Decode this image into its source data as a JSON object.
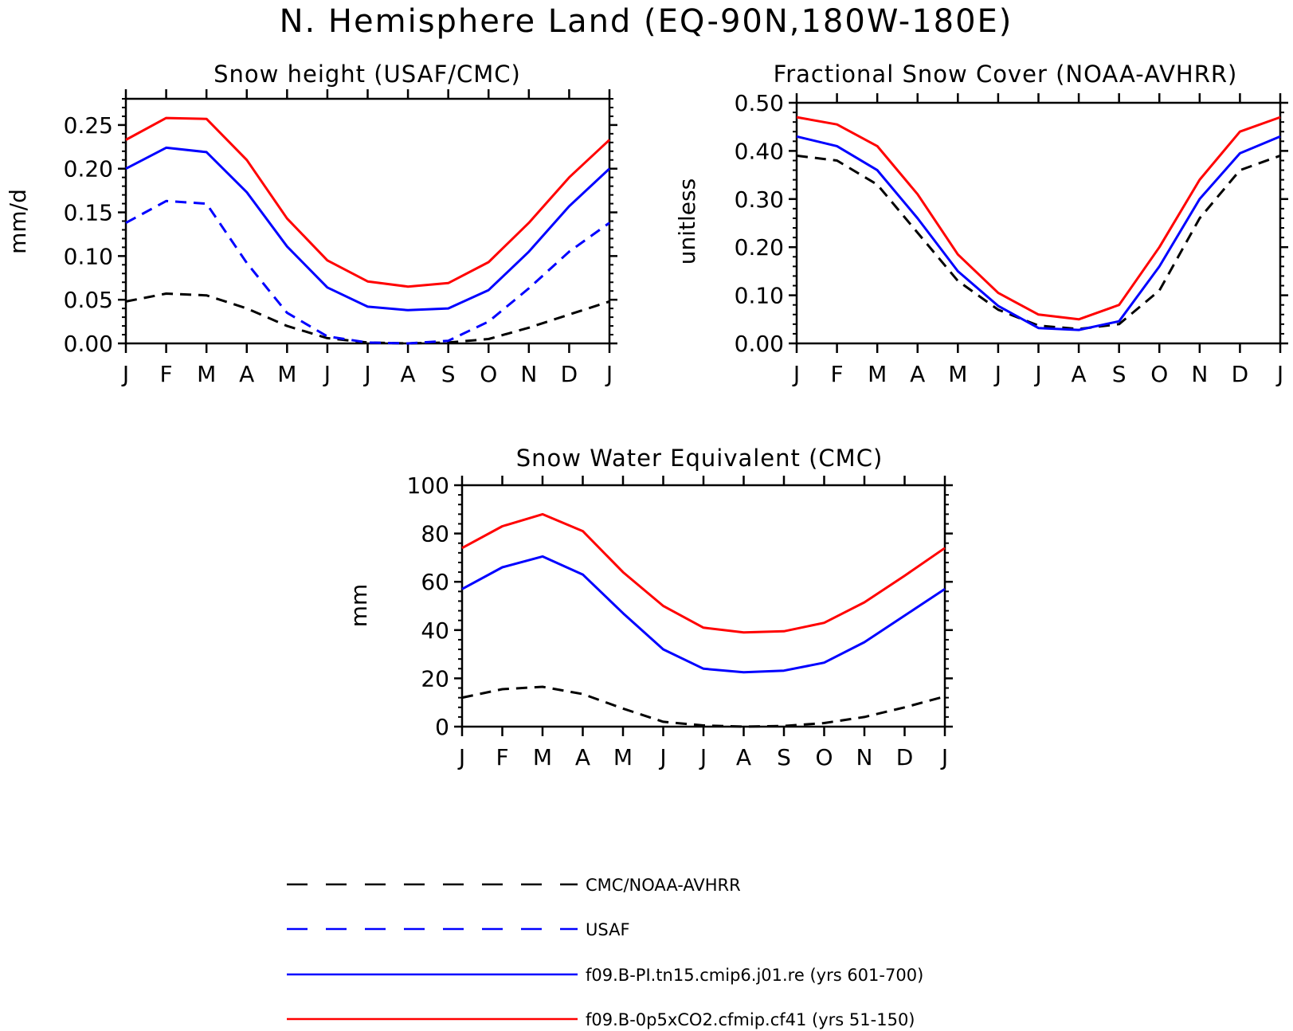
{
  "figure": {
    "title": "N. Hemisphere Land (EQ-90N,180W-180E)"
  },
  "colors": {
    "obs_cmc": "#000000",
    "obs_usaf": "#0000ff",
    "model_pi": "#0000ff",
    "model_0p5xco2": "#ff0000"
  },
  "legend": {
    "entries": [
      {
        "label": "CMC/NOAA-AVHRR",
        "color": "#000000",
        "dash": "dashed"
      },
      {
        "label": "USAF",
        "color": "#0000ff",
        "dash": "dashed"
      },
      {
        "label": "f09.B-PI.tn15.cmip6.j01.re (yrs 601-700)",
        "color": "#0000ff",
        "dash": "solid"
      },
      {
        "label": "f09.B-0p5xCO2.cfmip.cf41 (yrs 51-150)",
        "color": "#ff0000",
        "dash": "solid"
      }
    ]
  },
  "chart_data": [
    {
      "type": "line",
      "title": "Snow height (USAF/CMC)",
      "xlabel": "",
      "ylabel": "mm/d",
      "categories": [
        "J",
        "F",
        "M",
        "A",
        "M",
        "J",
        "J",
        "A",
        "S",
        "O",
        "N",
        "D",
        "J"
      ],
      "ylim": [
        0,
        0.28
      ],
      "yticks": [
        0.0,
        0.05,
        0.1,
        0.15,
        0.2,
        0.25
      ],
      "ytick_labels": [
        "0.00",
        "0.05",
        "0.10",
        "0.15",
        "0.20",
        "0.25"
      ],
      "grid": false,
      "series": [
        {
          "name": "CMC/NOAA-AVHRR",
          "color": "#000000",
          "dash": "dashed",
          "values": [
            0.048,
            0.057,
            0.055,
            0.04,
            0.02,
            0.006,
            0.001,
            0.0,
            0.001,
            0.005,
            0.018,
            0.033,
            0.048
          ]
        },
        {
          "name": "USAF",
          "color": "#0000ff",
          "dash": "dashed",
          "values": [
            0.138,
            0.163,
            0.16,
            0.092,
            0.035,
            0.008,
            0.001,
            0.0,
            0.003,
            0.025,
            0.063,
            0.105,
            0.138
          ]
        },
        {
          "name": "f09.B-PI.tn15.cmip6.j01.re (yrs 601-700)",
          "color": "#0000ff",
          "dash": "solid",
          "values": [
            0.2,
            0.224,
            0.219,
            0.173,
            0.111,
            0.064,
            0.042,
            0.038,
            0.04,
            0.061,
            0.105,
            0.157,
            0.2
          ]
        },
        {
          "name": "f09.B-0p5xCO2.cfmip.cf41 (yrs 51-150)",
          "color": "#ff0000",
          "dash": "solid",
          "values": [
            0.233,
            0.258,
            0.257,
            0.21,
            0.143,
            0.095,
            0.071,
            0.065,
            0.069,
            0.093,
            0.138,
            0.19,
            0.233
          ]
        }
      ]
    },
    {
      "type": "line",
      "title": "Fractional Snow Cover (NOAA-AVHRR)",
      "xlabel": "",
      "ylabel": "unitless",
      "categories": [
        "J",
        "F",
        "M",
        "A",
        "M",
        "J",
        "J",
        "A",
        "S",
        "O",
        "N",
        "D",
        "J"
      ],
      "ylim": [
        0,
        0.5
      ],
      "yticks": [
        0.0,
        0.1,
        0.2,
        0.3,
        0.4,
        0.5
      ],
      "ytick_labels": [
        "0.00",
        "0.10",
        "0.20",
        "0.30",
        "0.40",
        "0.50"
      ],
      "grid": false,
      "series": [
        {
          "name": "CMC/NOAA-AVHRR",
          "color": "#000000",
          "dash": "dashed",
          "values": [
            0.39,
            0.38,
            0.33,
            0.23,
            0.13,
            0.07,
            0.037,
            0.03,
            0.04,
            0.11,
            0.26,
            0.36,
            0.39
          ]
        },
        {
          "name": "f09.B-PI.tn15.cmip6.j01.re (yrs 601-700)",
          "color": "#0000ff",
          "dash": "solid",
          "values": [
            0.43,
            0.41,
            0.36,
            0.26,
            0.15,
            0.078,
            0.032,
            0.028,
            0.046,
            0.16,
            0.3,
            0.395,
            0.43
          ]
        },
        {
          "name": "f09.B-0p5xCO2.cfmip.cf41 (yrs 51-150)",
          "color": "#ff0000",
          "dash": "solid",
          "values": [
            0.47,
            0.455,
            0.41,
            0.31,
            0.185,
            0.105,
            0.06,
            0.05,
            0.08,
            0.2,
            0.34,
            0.44,
            0.47
          ]
        }
      ]
    },
    {
      "type": "line",
      "title": "Snow Water Equivalent (CMC)",
      "xlabel": "",
      "ylabel": "mm",
      "categories": [
        "J",
        "F",
        "M",
        "A",
        "M",
        "J",
        "J",
        "A",
        "S",
        "O",
        "N",
        "D",
        "J"
      ],
      "ylim": [
        0,
        100
      ],
      "yticks": [
        0,
        20,
        40,
        60,
        80,
        100
      ],
      "ytick_labels": [
        "0",
        "20",
        "40",
        "60",
        "80",
        "100"
      ],
      "grid": false,
      "series": [
        {
          "name": "CMC/NOAA-AVHRR",
          "color": "#000000",
          "dash": "dashed",
          "values": [
            12,
            15.5,
            16.5,
            13.5,
            7.5,
            2,
            0.5,
            0,
            0.3,
            1.5,
            4,
            8,
            12.5
          ]
        },
        {
          "name": "f09.B-PI.tn15.cmip6.j01.re (yrs 601-700)",
          "color": "#0000ff",
          "dash": "solid",
          "values": [
            57,
            66,
            70.5,
            63,
            47,
            32,
            24,
            22.5,
            23.2,
            26.5,
            35,
            46,
            57
          ]
        },
        {
          "name": "f09.B-0p5xCO2.cfmip.cf41 (yrs 51-150)",
          "color": "#ff0000",
          "dash": "solid",
          "values": [
            74,
            83,
            88,
            81,
            64,
            50,
            41,
            39,
            39.5,
            43,
            51.5,
            62.5,
            74
          ]
        }
      ]
    }
  ]
}
